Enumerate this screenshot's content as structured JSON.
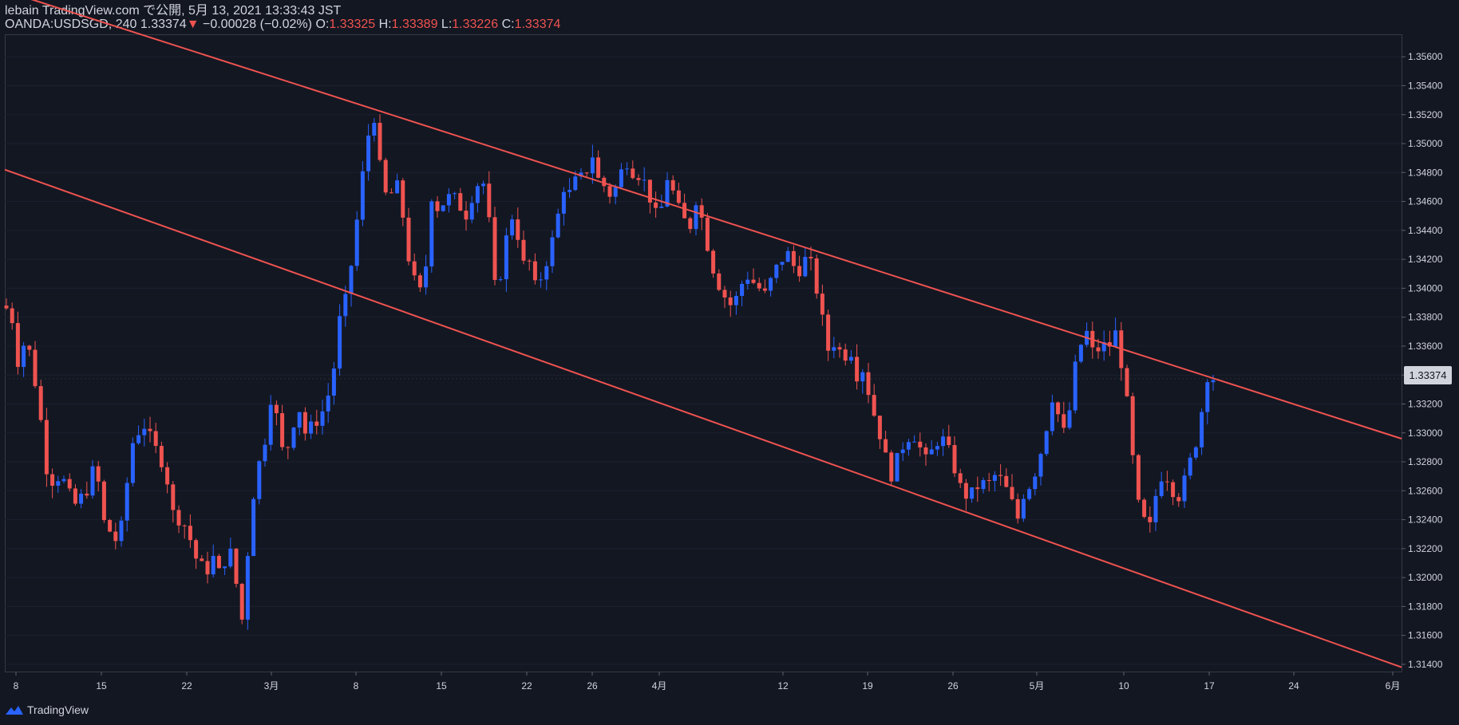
{
  "header": {
    "line1": "lebain TradingView.com で公開, 5月 13, 2021 13:33:43 JST",
    "symbol": "OANDA:USDSGD, 240",
    "last": "1.33374",
    "arrow": "▼",
    "change": "−0.00028 (−0.02%)",
    "o_label": "O:",
    "o_value": "1.33325",
    "h_label": "H:",
    "h_value": "1.33389",
    "l_label": "L:",
    "l_value": "1.33226",
    "c_label": "C:",
    "c_value": "1.33374"
  },
  "footer": {
    "brand": "TradingView"
  },
  "colors": {
    "background": "#131722",
    "up": "#2962ff",
    "down": "#ef5350",
    "channel": "#ef5350",
    "axis_text": "#d1d4dc"
  },
  "chart_data": {
    "type": "candlestick",
    "symbol": "OANDA:USDSGD",
    "interval": "240",
    "x_ticks": [
      "8",
      "15",
      "22",
      "3月",
      "8",
      "15",
      "22",
      "26",
      "4月",
      "12",
      "19",
      "26",
      "5月",
      "10",
      "17",
      "24",
      "6月"
    ],
    "y_ticks": [
      "1.35600",
      "1.35400",
      "1.35200",
      "1.35000",
      "1.34800",
      "1.34600",
      "1.34400",
      "1.34200",
      "1.34000",
      "1.33800",
      "1.33600",
      "1.33400",
      "1.33200",
      "1.33000",
      "1.32800",
      "1.32600",
      "1.32400",
      "1.32200",
      "1.32000",
      "1.31800",
      "1.31600",
      "1.31400"
    ],
    "ylim": [
      1.3135,
      1.3575
    ],
    "last_price": "1.33374",
    "channel": {
      "upper": [
        [
          0.2,
          1.3605
        ],
        [
          100,
          1.3296
        ]
      ],
      "lower": [
        [
          0,
          1.3482
        ],
        [
          100,
          1.3138
        ]
      ]
    },
    "path": [
      [
        0,
        1.3388
      ],
      [
        0.5,
        1.338
      ],
      [
        1,
        1.3345
      ],
      [
        1.5,
        1.3368
      ],
      [
        2,
        1.3345
      ],
      [
        2.5,
        1.3315
      ],
      [
        3,
        1.3275
      ],
      [
        3.5,
        1.3265
      ],
      [
        4,
        1.3272
      ],
      [
        4.5,
        1.326
      ],
      [
        5,
        1.325
      ],
      [
        6,
        1.3262
      ],
      [
        6.5,
        1.3282
      ],
      [
        7,
        1.324
      ],
      [
        8,
        1.3225
      ],
      [
        8.5,
        1.324
      ],
      [
        9,
        1.329
      ],
      [
        9.5,
        1.33
      ],
      [
        10,
        1.3305
      ],
      [
        11,
        1.3285
      ],
      [
        11.5,
        1.3275
      ],
      [
        12,
        1.3245
      ],
      [
        13,
        1.3235
      ],
      [
        13.8,
        1.321
      ],
      [
        14.5,
        1.3205
      ],
      [
        15,
        1.3215
      ],
      [
        15.5,
        1.3198
      ],
      [
        16,
        1.3225
      ],
      [
        16.5,
        1.32
      ],
      [
        17,
        1.317
      ],
      [
        17.5,
        1.323
      ],
      [
        18,
        1.3275
      ],
      [
        18.5,
        1.3285
      ],
      [
        19,
        1.3325
      ],
      [
        19.5,
        1.331
      ],
      [
        20,
        1.328
      ],
      [
        21,
        1.332
      ],
      [
        21.5,
        1.33
      ],
      [
        22,
        1.3305
      ],
      [
        22.5,
        1.331
      ],
      [
        23,
        1.332
      ],
      [
        23.5,
        1.334
      ],
      [
        24,
        1.338
      ],
      [
        24.5,
        1.3395
      ],
      [
        25,
        1.343
      ],
      [
        25.5,
        1.347
      ],
      [
        26,
        1.3505
      ],
      [
        26.5,
        1.352
      ],
      [
        27,
        1.347
      ],
      [
        27.5,
        1.346
      ],
      [
        28,
        1.3475
      ],
      [
        28.5,
        1.345
      ],
      [
        29,
        1.3415
      ],
      [
        29.5,
        1.34
      ],
      [
        30,
        1.3395
      ],
      [
        30.5,
        1.3465
      ],
      [
        31,
        1.3455
      ],
      [
        31.5,
        1.346
      ],
      [
        32,
        1.3465
      ],
      [
        32.5,
        1.3458
      ],
      [
        33,
        1.345
      ],
      [
        33.5,
        1.3465
      ],
      [
        34,
        1.3475
      ],
      [
        34.5,
        1.347
      ],
      [
        35,
        1.34
      ],
      [
        35.5,
        1.341
      ],
      [
        36,
        1.344
      ],
      [
        36.5,
        1.3455
      ],
      [
        37,
        1.3415
      ],
      [
        37.5,
        1.342
      ],
      [
        38,
        1.34
      ],
      [
        38.5,
        1.341
      ],
      [
        39,
        1.3425
      ],
      [
        39.5,
        1.3445
      ],
      [
        40,
        1.347
      ],
      [
        40.5,
        1.3465
      ],
      [
        41,
        1.3478
      ],
      [
        41.5,
        1.3475
      ],
      [
        42,
        1.3495
      ],
      [
        42.5,
        1.3475
      ],
      [
        43,
        1.347
      ],
      [
        43.5,
        1.3462
      ],
      [
        44,
        1.3478
      ],
      [
        44.5,
        1.3488
      ],
      [
        45,
        1.348
      ],
      [
        45.5,
        1.3478
      ],
      [
        46,
        1.347
      ],
      [
        46.5,
        1.345
      ],
      [
        47,
        1.3455
      ],
      [
        47.5,
        1.348
      ],
      [
        48,
        1.346
      ],
      [
        48.5,
        1.345
      ],
      [
        49,
        1.344
      ],
      [
        49.5,
        1.3462
      ],
      [
        50,
        1.3445
      ],
      [
        50.5,
        1.342
      ],
      [
        51,
        1.3405
      ],
      [
        51.5,
        1.3395
      ],
      [
        52,
        1.3388
      ],
      [
        52.5,
        1.3395
      ],
      [
        53,
        1.341
      ],
      [
        53.5,
        1.3405
      ],
      [
        54,
        1.34
      ],
      [
        54.5,
        1.3395
      ],
      [
        55,
        1.341
      ],
      [
        55.5,
        1.3418
      ],
      [
        56,
        1.3425
      ],
      [
        56.5,
        1.3415
      ],
      [
        57,
        1.3412
      ],
      [
        57.5,
        1.3425
      ],
      [
        58,
        1.3405
      ],
      [
        58.5,
        1.338
      ],
      [
        59,
        1.3355
      ],
      [
        59.5,
        1.3365
      ],
      [
        60,
        1.335
      ],
      [
        60.5,
        1.336
      ],
      [
        61,
        1.334
      ],
      [
        61.5,
        1.3345
      ],
      [
        62,
        1.332
      ],
      [
        62.5,
        1.3305
      ],
      [
        63,
        1.3285
      ],
      [
        63.5,
        1.327
      ],
      [
        64,
        1.3285
      ],
      [
        64.5,
        1.3295
      ],
      [
        65,
        1.33
      ],
      [
        65.5,
        1.329
      ],
      [
        66,
        1.328
      ],
      [
        66.5,
        1.329
      ],
      [
        67,
        1.3298
      ],
      [
        67.5,
        1.329
      ],
      [
        68,
        1.3275
      ],
      [
        68.5,
        1.326
      ],
      [
        69,
        1.3255
      ],
      [
        69.5,
        1.3262
      ],
      [
        70,
        1.3265
      ],
      [
        70.5,
        1.3265
      ],
      [
        71,
        1.3272
      ],
      [
        71.5,
        1.3265
      ],
      [
        72,
        1.3255
      ],
      [
        72.5,
        1.324
      ],
      [
        73,
        1.326
      ],
      [
        73.5,
        1.3265
      ],
      [
        74,
        1.328
      ],
      [
        74.5,
        1.33
      ],
      [
        75,
        1.3325
      ],
      [
        75.5,
        1.331
      ],
      [
        76,
        1.3295
      ],
      [
        76.5,
        1.334
      ],
      [
        77,
        1.336
      ],
      [
        77.5,
        1.337
      ],
      [
        78,
        1.3352
      ],
      [
        78.5,
        1.3362
      ],
      [
        79,
        1.3358
      ],
      [
        79.5,
        1.337
      ],
      [
        80,
        1.3345
      ],
      [
        80.5,
        1.331
      ],
      [
        81,
        1.3255
      ],
      [
        81.5,
        1.324
      ],
      [
        82,
        1.3235
      ],
      [
        82.5,
        1.3262
      ],
      [
        83,
        1.3275
      ],
      [
        83.5,
        1.3262
      ],
      [
        84,
        1.3255
      ],
      [
        84.5,
        1.3268
      ],
      [
        85,
        1.3285
      ],
      [
        85.5,
        1.33
      ],
      [
        86,
        1.334
      ],
      [
        86.4,
        1.3338
      ],
      [
        86.8,
        1.3337
      ]
    ]
  }
}
